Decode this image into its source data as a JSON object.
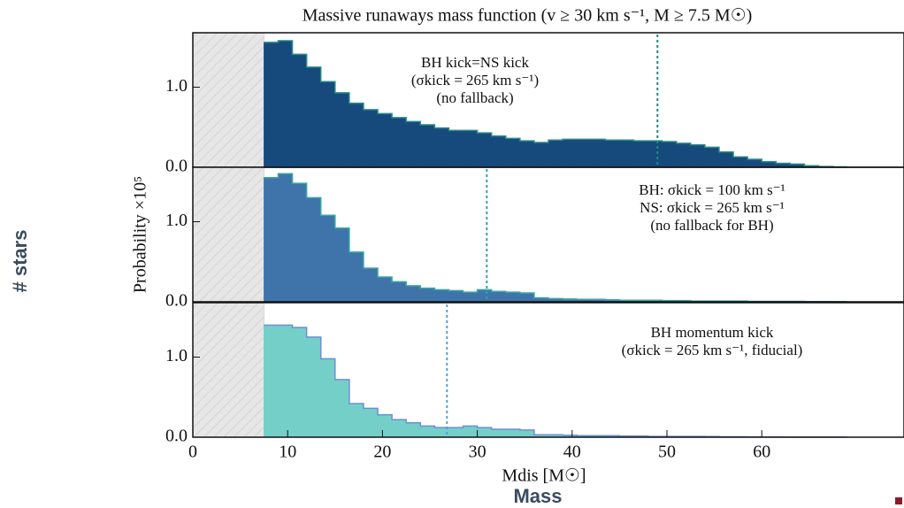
{
  "overlay": {
    "y_label": "# stars",
    "x_label": "Mass"
  },
  "chart_data": [
    {
      "type": "histogram",
      "title": "Massive runaways mass function (v ≥ 30 km s⁻¹, M ≥ 7.5 M☉)",
      "annotation": [
        "BH kick=NS kick",
        "(σkick = 265 km s⁻¹)",
        "(no fallback)"
      ],
      "color": "#174a7c",
      "edge_color": "#2a8a8a",
      "vline": 49,
      "vline_color": "#1e8a8a",
      "excluded_range": [
        0,
        7.5
      ],
      "xlim": [
        0,
        75
      ],
      "ylim": [
        0,
        1.68
      ],
      "yticks": [
        {
          "value": 0,
          "label": "0.0"
        },
        {
          "value": 1,
          "label": "1.0"
        }
      ],
      "bins": [
        7.5,
        9,
        10.5,
        12,
        13.5,
        15,
        16.5,
        18,
        19.5,
        21,
        22.5,
        24,
        25.5,
        27,
        28.5,
        30,
        31.5,
        33,
        34.5,
        36,
        37.5,
        39,
        40.5,
        42,
        43.5,
        45,
        46.5,
        48,
        49.5,
        51,
        52.5,
        54,
        55.5,
        57,
        58.5,
        60,
        61.5,
        63,
        64.5,
        66,
        67.5,
        69
      ],
      "values": [
        1.56,
        1.58,
        1.41,
        1.25,
        1.07,
        0.93,
        0.8,
        0.72,
        0.67,
        0.62,
        0.57,
        0.53,
        0.49,
        0.46,
        0.46,
        0.43,
        0.39,
        0.36,
        0.33,
        0.31,
        0.34,
        0.35,
        0.35,
        0.35,
        0.34,
        0.34,
        0.33,
        0.33,
        0.32,
        0.3,
        0.28,
        0.25,
        0.19,
        0.13,
        0.1,
        0.07,
        0.05,
        0.04,
        0.02,
        0.01,
        0.005
      ]
    },
    {
      "type": "histogram",
      "ylabel": "Probability ×10⁵",
      "annotation": [
        "BH: σkick = 100 km s⁻¹",
        "NS: σkick = 265 km s⁻¹",
        "(no fallback for BH)"
      ],
      "color": "#3f74aa",
      "edge_color": "#3aa6a6",
      "vline": 31,
      "vline_color": "#2aa6a6",
      "excluded_range": [
        0,
        7.5
      ],
      "xlim": [
        0,
        75
      ],
      "ylim": [
        0,
        1.68
      ],
      "yticks": [
        {
          "value": 0,
          "label": "0.0"
        },
        {
          "value": 1,
          "label": "1.0"
        }
      ],
      "bins": [
        7.5,
        9,
        10.5,
        12,
        13.5,
        15,
        16.5,
        18,
        19.5,
        21,
        22.5,
        24,
        25.5,
        27,
        28.5,
        30,
        31.5,
        33,
        34.5,
        36,
        37.5,
        39,
        40.5,
        42,
        43.5,
        45,
        46.5,
        48,
        49.5,
        51,
        52.5,
        54,
        55.5,
        57,
        58.5,
        60,
        61.5,
        63,
        64.5,
        66,
        67.5,
        69
      ],
      "values": [
        1.55,
        1.6,
        1.48,
        1.3,
        1.08,
        0.92,
        0.62,
        0.42,
        0.31,
        0.25,
        0.2,
        0.17,
        0.15,
        0.14,
        0.12,
        0.15,
        0.13,
        0.12,
        0.11,
        0.05,
        0.04,
        0.035,
        0.03,
        0.03,
        0.025,
        0.02,
        0.02,
        0.02,
        0.015,
        0.015,
        0.01,
        0.01,
        0.01,
        0.01,
        0.005,
        0.005,
        0.005,
        0.005,
        0.003,
        0.003,
        0.002
      ]
    },
    {
      "type": "histogram",
      "xlabel": "Mdis [M☉]",
      "annotation": [
        "BH momentum kick",
        "(σkick = 265 km s⁻¹, fiducial)"
      ],
      "color": "#74cfc9",
      "edge_color": "#6c8fd6",
      "vline": 26.8,
      "vline_color": "#5b9be0",
      "excluded_range": [
        0,
        7.5
      ],
      "xlim": [
        0,
        75
      ],
      "ylim": [
        0,
        1.68
      ],
      "yticks": [
        {
          "value": 0,
          "label": "0.0"
        },
        {
          "value": 1,
          "label": "1.0"
        }
      ],
      "xticks": [
        0,
        10,
        20,
        30,
        40,
        50,
        60
      ],
      "bins": [
        7.5,
        9,
        10.5,
        12,
        13.5,
        15,
        16.5,
        18,
        19.5,
        21,
        22.5,
        24,
        25.5,
        27,
        28.5,
        30,
        31.5,
        33,
        34.5,
        36,
        37.5,
        39,
        40.5,
        42,
        43.5,
        45,
        46.5,
        48,
        49.5,
        51,
        52.5,
        54,
        55.5,
        57,
        58.5,
        60,
        61.5,
        63,
        64.5,
        66,
        67.5,
        69
      ],
      "values": [
        1.4,
        1.4,
        1.37,
        1.25,
        0.98,
        0.72,
        0.42,
        0.36,
        0.28,
        0.22,
        0.18,
        0.14,
        0.12,
        0.12,
        0.14,
        0.12,
        0.1,
        0.1,
        0.09,
        0.03,
        0.03,
        0.025,
        0.02,
        0.02,
        0.02,
        0.015,
        0.015,
        0.01,
        0.01,
        0.01,
        0.01,
        0.008,
        0.006,
        0.005,
        0.004,
        0.003,
        0.003,
        0.002,
        0.002,
        0.001,
        0.001
      ]
    }
  ]
}
